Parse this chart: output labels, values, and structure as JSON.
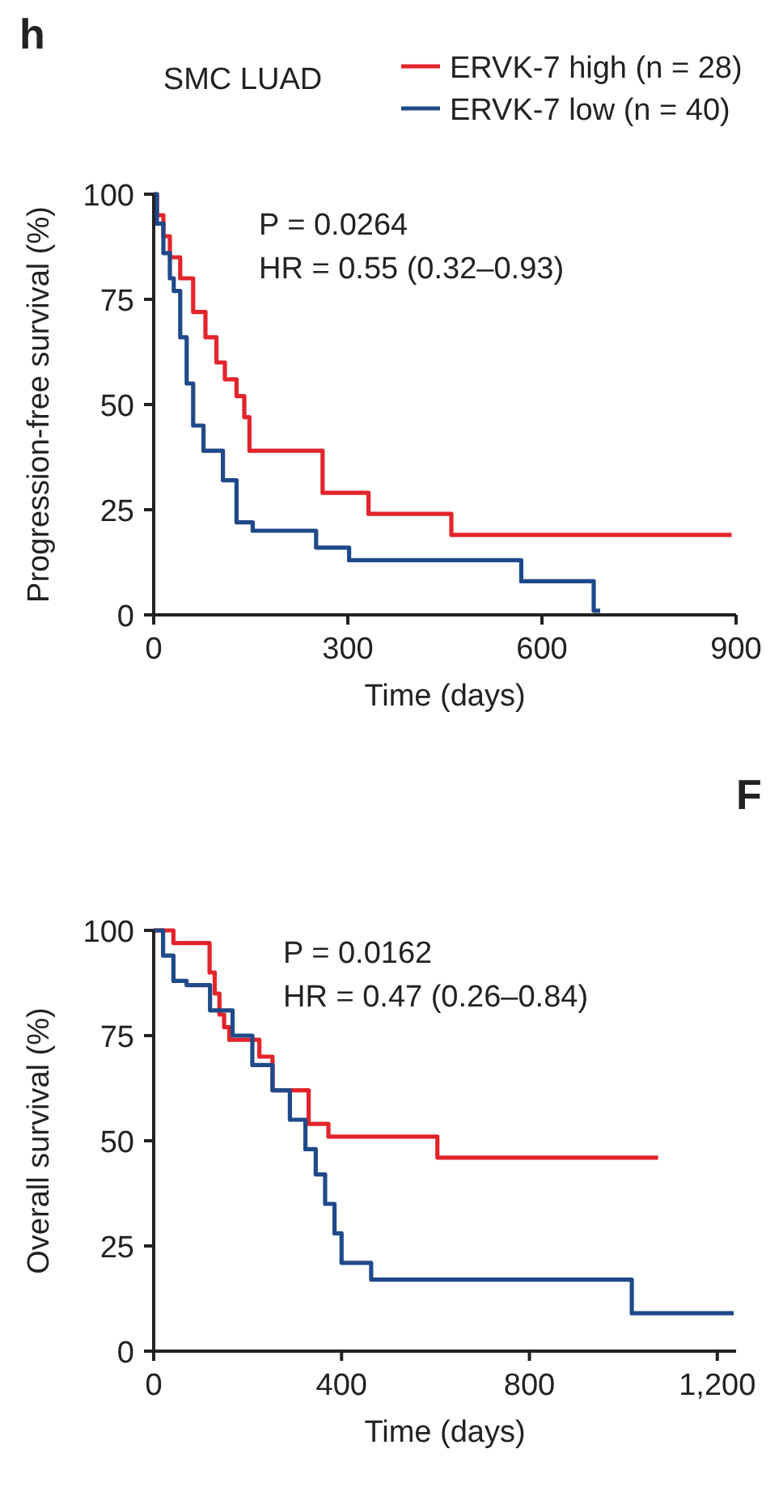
{
  "chart_data": [
    {
      "type": "step",
      "title": "SMC LUAD",
      "xlabel": "Time (days)",
      "ylabel": "Progression-free survival (%)",
      "annotations": [
        "P = 0.0264",
        "HR = 0.55 (0.32–0.93)",
        "h"
      ],
      "xlim": [
        0,
        900
      ],
      "xticks": [
        0,
        300,
        600,
        900
      ],
      "ylim": [
        0,
        100
      ],
      "yticks": [
        0,
        25,
        50,
        75,
        100
      ],
      "legend": "top right",
      "grid": false,
      "series": [
        {
          "name": "ERVK-7 high (n = 28)",
          "color": "#e3242b",
          "x": [
            0,
            5,
            15,
            25,
            41,
            61,
            80,
            97,
            110,
            128,
            140,
            148,
            261,
            332,
            460,
            893
          ],
          "values": [
            100,
            95,
            90,
            85,
            80,
            72,
            66,
            60,
            56,
            52,
            47,
            39,
            29,
            24,
            19,
            19
          ]
        },
        {
          "name": "ERVK-7 low (n = 40)",
          "color": "#1f4a8a",
          "x": [
            0,
            5,
            15,
            25,
            31,
            41,
            51,
            61,
            77,
            107,
            128,
            153,
            251,
            302,
            568,
            680,
            690
          ],
          "values": [
            100,
            93,
            86,
            80,
            77,
            66,
            55,
            45,
            39,
            32,
            22,
            20,
            16,
            13,
            8,
            1,
            1
          ]
        }
      ]
    },
    {
      "type": "step",
      "xlabel": "Time (days)",
      "ylabel": "Overall survival (%)",
      "annotations": [
        "P = 0.0162",
        "HR = 0.47 (0.26–0.84)",
        "F"
      ],
      "xlim": [
        0,
        1240
      ],
      "xticks": [
        0,
        400,
        800,
        {
          "value": 1200,
          "label": "1,200"
        }
      ],
      "ylim": [
        0,
        100
      ],
      "yticks": [
        0,
        25,
        50,
        75,
        100
      ],
      "grid": false,
      "series": [
        {
          "color": "#e3242b",
          "x": [
            0,
            42,
            119,
            130,
            140,
            150,
            161,
            225,
            253,
            330,
            372,
            604,
            1074
          ],
          "values": [
            100,
            97,
            90,
            85,
            80,
            77,
            74,
            70,
            62,
            54,
            51,
            46,
            46
          ]
        },
        {
          "color": "#1f4a8a",
          "x": [
            0,
            20,
            42,
            70,
            120,
            168,
            210,
            253,
            290,
            323,
            345,
            365,
            385,
            400,
            463,
            1018,
            1235
          ],
          "values": [
            100,
            94,
            88,
            87,
            81,
            75,
            68,
            62,
            55,
            48,
            42,
            35,
            28,
            21,
            17,
            9,
            9
          ]
        }
      ]
    }
  ]
}
